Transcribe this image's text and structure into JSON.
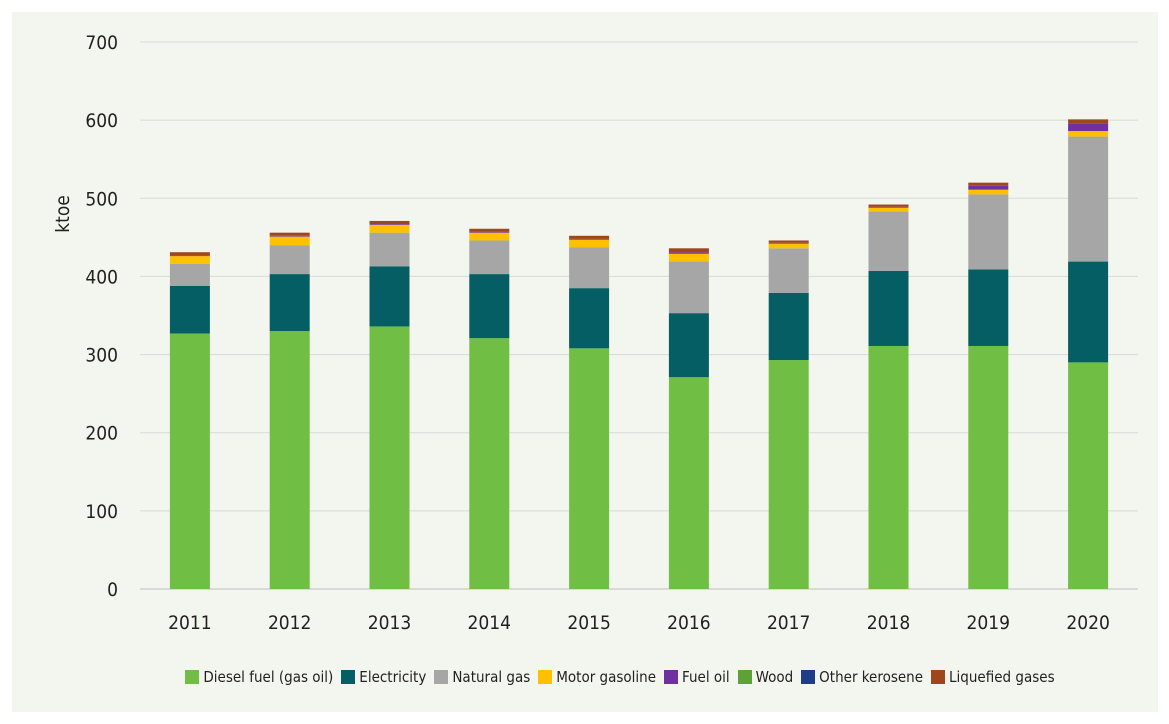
{
  "chart_data": {
    "type": "bar",
    "stacked": true,
    "title": "",
    "xlabel": "",
    "ylabel": "ktoe",
    "ylim": [
      0,
      700
    ],
    "yticks": [
      0,
      100,
      200,
      300,
      400,
      500,
      600,
      700
    ],
    "grid": true,
    "legend_position": "bottom",
    "categories": [
      "2011",
      "2012",
      "2013",
      "2014",
      "2015",
      "2016",
      "2017",
      "2018",
      "2019",
      "2020"
    ],
    "series": [
      {
        "name": "Diesel fuel (gas oil)",
        "color": "#70bf44",
        "values": [
          327,
          330,
          336,
          321,
          308,
          271,
          293,
          311,
          311,
          290
        ]
      },
      {
        "name": "Electricity",
        "color": "#045e63",
        "values": [
          61,
          73,
          77,
          82,
          77,
          82,
          86,
          96,
          98,
          129
        ]
      },
      {
        "name": "Natural gas",
        "color": "#a6a6a6",
        "values": [
          28,
          37,
          43,
          43,
          52,
          66,
          57,
          76,
          96,
          160
        ]
      },
      {
        "name": "Motor gasoline",
        "color": "#ffc000",
        "values": [
          10,
          11,
          10,
          10,
          10,
          10,
          6,
          5,
          6,
          7
        ]
      },
      {
        "name": "Fuel oil",
        "color": "#7030a0",
        "values": [
          1,
          1,
          1,
          1,
          1,
          2,
          1,
          1,
          5,
          10
        ]
      },
      {
        "name": "Wood",
        "color": "#5ea237",
        "values": [
          0,
          0,
          0,
          0,
          0,
          0,
          0,
          0,
          0,
          0
        ]
      },
      {
        "name": "Other kerosene",
        "color": "#1f3c88",
        "values": [
          0,
          0,
          0,
          0,
          0,
          0,
          0,
          0,
          0,
          0
        ]
      },
      {
        "name": "Liquefied gases",
        "color": "#a0461c",
        "values": [
          4,
          4,
          4,
          4,
          4,
          5,
          3,
          3,
          4,
          5
        ]
      }
    ]
  }
}
